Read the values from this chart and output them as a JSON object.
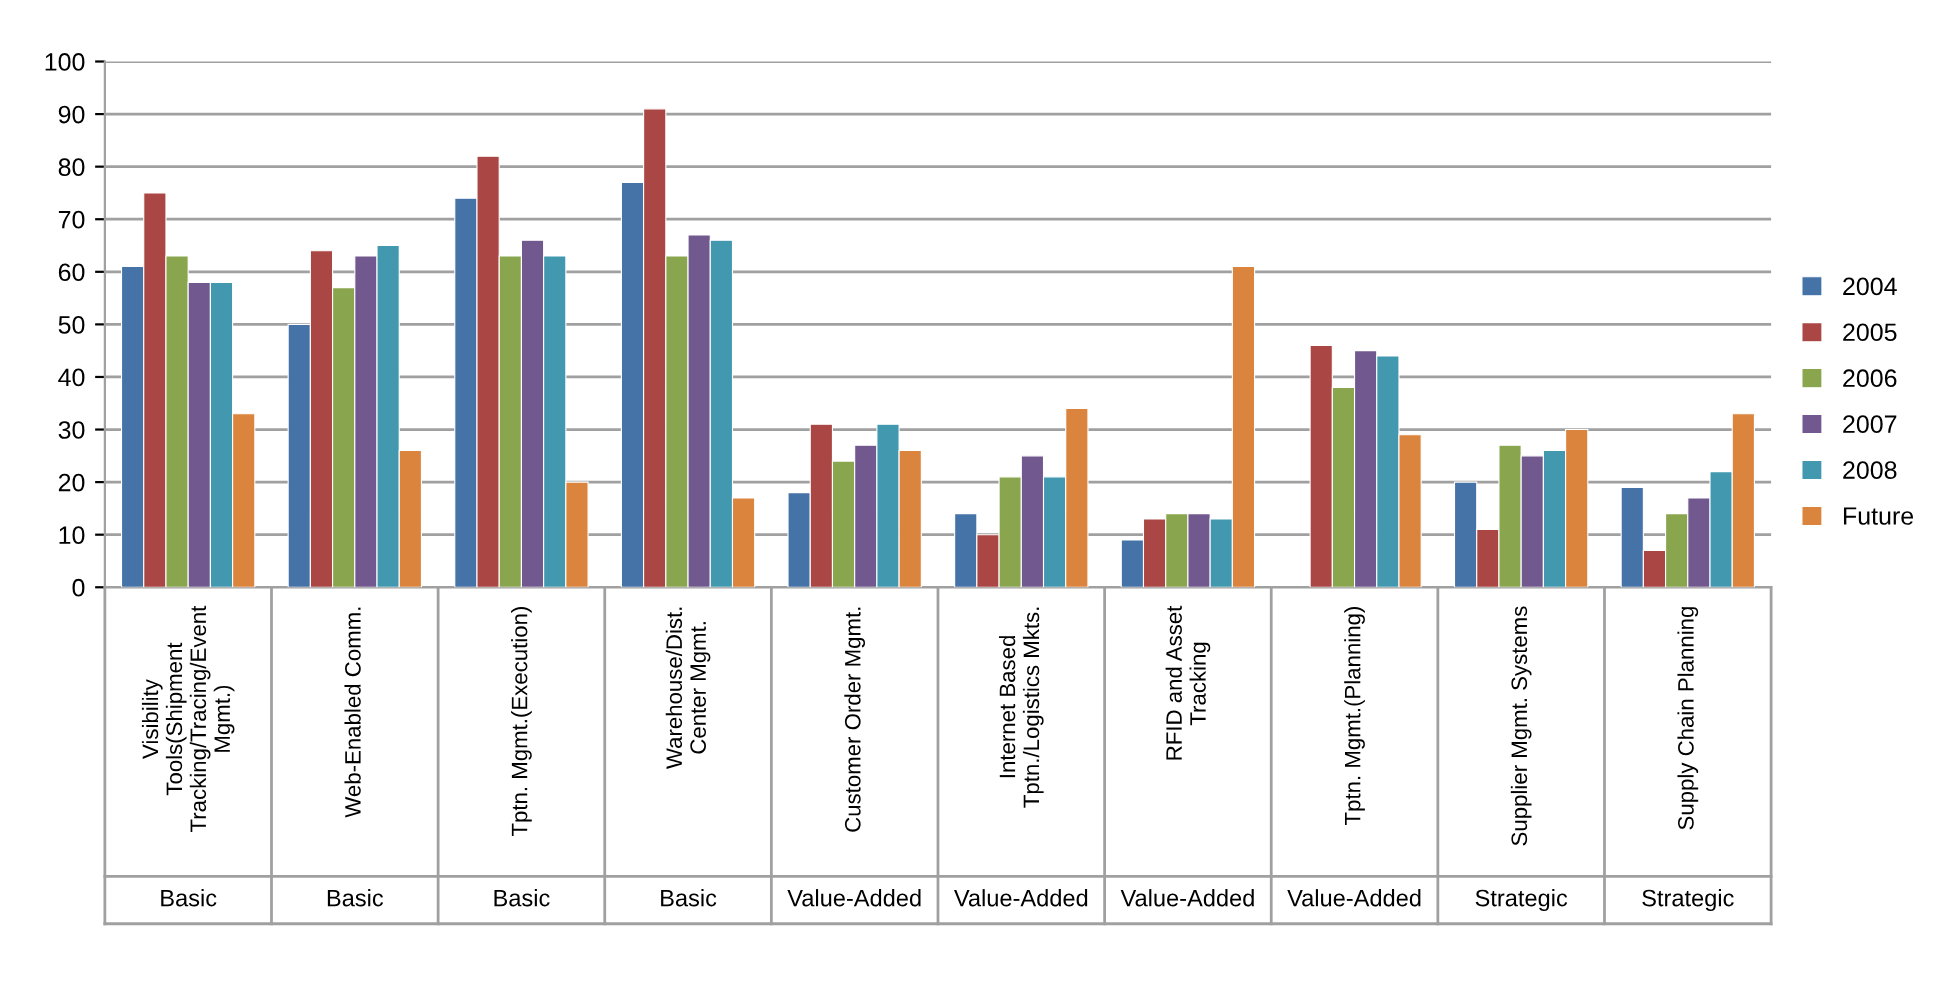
{
  "chart_data": {
    "type": "bar",
    "categories": [
      "Visibility\nTools(Shipment\nTracking/Tracing/Event\nMgmt.)",
      "Web-Enabled Comm.",
      "Tptn. Mgmt.(Execution)",
      "Warehouse/Dist.\nCenter Mgmt.",
      "Customer Order Mgmt.",
      "Internet Based\nTptn./Logistics Mkts.",
      "RFID and Asset\nTracking",
      "Tptn. Mgmt.(Planning)",
      "Supplier Mgmt. Systems",
      "Supply Chain Planning"
    ],
    "series": [
      {
        "name": "2004",
        "color": "#4572a7",
        "values": [
          61,
          50,
          74,
          77,
          18,
          14,
          9,
          null,
          20,
          19
        ]
      },
      {
        "name": "2005",
        "color": "#aa4643",
        "values": [
          75,
          64,
          82,
          91,
          31,
          10,
          13,
          46,
          11,
          7
        ]
      },
      {
        "name": "2006",
        "color": "#89a54e",
        "values": [
          63,
          57,
          63,
          63,
          24,
          21,
          14,
          38,
          27,
          14
        ]
      },
      {
        "name": "2007",
        "color": "#71588f",
        "values": [
          58,
          63,
          66,
          67,
          27,
          25,
          14,
          45,
          25,
          17
        ]
      },
      {
        "name": "2008",
        "color": "#4198af",
        "values": [
          58,
          65,
          63,
          66,
          31,
          21,
          13,
          44,
          26,
          22
        ]
      },
      {
        "name": "Future",
        "color": "#db843d",
        "values": [
          33,
          26,
          20,
          17,
          26,
          34,
          61,
          29,
          30,
          33
        ]
      }
    ],
    "annotations": [
      "Basic",
      "Basic",
      "Basic",
      "Basic",
      "Value-Added",
      "Value-Added",
      "Value-Added",
      "Value-Added",
      "Strategic",
      "Strategic"
    ],
    "ylim": [
      0,
      100
    ],
    "yticks": [
      0,
      10,
      20,
      30,
      40,
      50,
      60,
      70,
      80,
      90,
      100
    ],
    "grid": "y",
    "legend": "right"
  }
}
